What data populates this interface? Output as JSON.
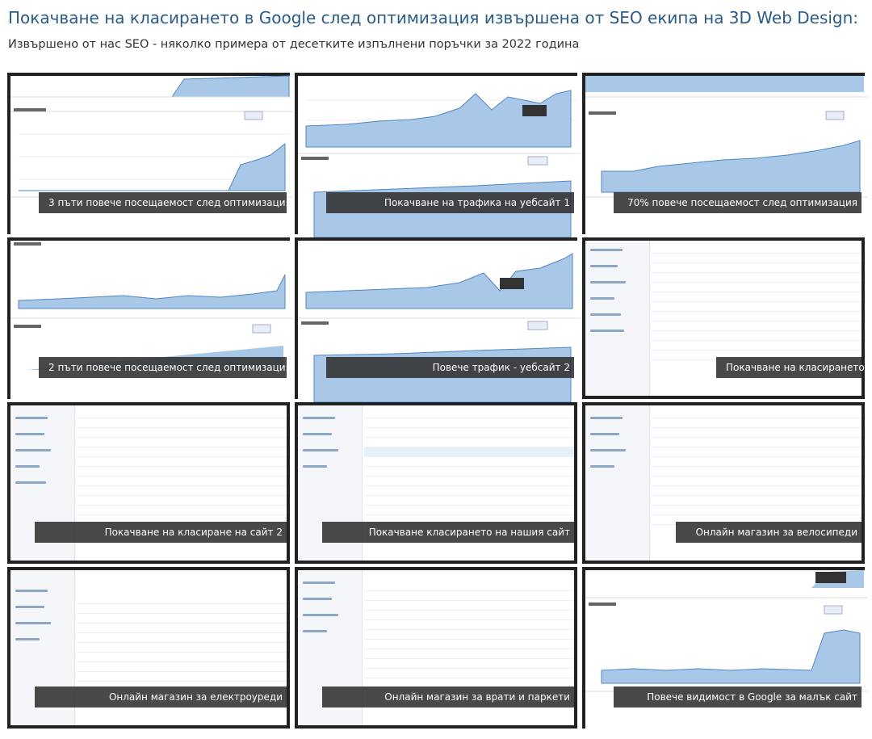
{
  "header": {
    "title": "Покачване на класирането в Google след оптимизация извършена от SEO екипа на 3D Web Design:",
    "subtitle": "Извършено от нас SEO - няколко примера от десетките изпълнени поръчки за 2022 година"
  },
  "gallery": {
    "items": [
      {
        "caption": "3 пъти повече посещаемост след оптимизация",
        "kind": "chart"
      },
      {
        "caption": "Покачване на трафика на уебсайт 1",
        "kind": "chart"
      },
      {
        "caption": "70% повече посещаемост след оптимизация",
        "kind": "chart"
      },
      {
        "caption": "2 пъти повече посещаемост след оптимизация",
        "kind": "chart"
      },
      {
        "caption": "Повече трафик - уебсайт 2",
        "kind": "chart"
      },
      {
        "caption": "Покачване на класирането",
        "kind": "table"
      },
      {
        "caption": "Покачване на класиране на сайт 2",
        "kind": "table"
      },
      {
        "caption": "Покачване класирането на нашия сайт",
        "kind": "table"
      },
      {
        "caption": "Онлайн магазин за велосипеди",
        "kind": "table"
      },
      {
        "caption": "Онлайн магазин за електроуреди",
        "kind": "table"
      },
      {
        "caption": "Онлайн магазин за врати и паркети",
        "kind": "table"
      },
      {
        "caption": "Повече видимост в Google за малък сайт",
        "kind": "chart"
      }
    ]
  },
  "colors": {
    "title": "#2a5a86",
    "tile_border": "#222222",
    "caption_bg": "#303030",
    "chart_fill": "#a9c8e8",
    "chart_line": "#4f86c6"
  }
}
